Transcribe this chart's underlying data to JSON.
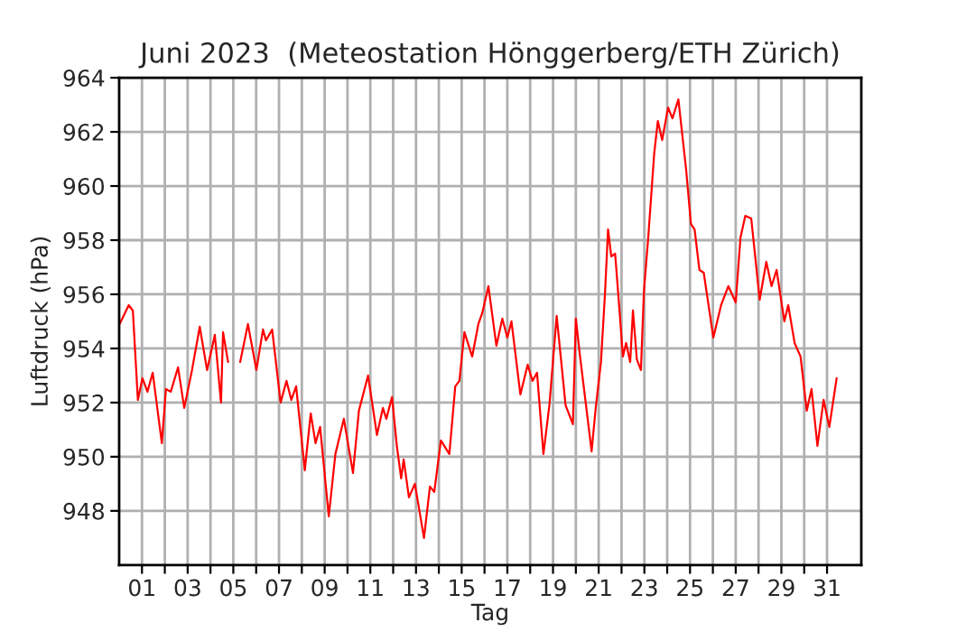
{
  "chart_data": {
    "type": "line",
    "title": "Juni 2023  (Meteostation Hönggerberg/ETH Zürich)",
    "xlabel": "Tag",
    "ylabel": "Luftdruck (hPa)",
    "x": [
      0.02,
      0.42,
      0.6,
      0.82,
      1.02,
      1.24,
      1.47,
      1.87,
      2.05,
      2.26,
      2.58,
      2.85,
      3.19,
      3.53,
      3.85,
      4.19,
      4.46,
      4.55,
      4.77,
      5.0,
      5.3,
      5.64,
      6.01,
      6.3,
      6.43,
      6.7,
      7.07,
      7.33,
      7.54,
      7.75,
      8.13,
      8.39,
      8.6,
      8.8,
      9.18,
      9.47,
      9.84,
      10.24,
      10.5,
      10.9,
      11.29,
      11.55,
      11.7,
      11.95,
      12.16,
      12.35,
      12.46,
      12.69,
      12.95,
      13.35,
      13.61,
      13.8,
      14.09,
      14.46,
      14.72,
      14.9,
      15.12,
      15.46,
      15.73,
      15.9,
      16.17,
      16.52,
      16.78,
      17.0,
      17.18,
      17.57,
      17.89,
      18.1,
      18.3,
      18.58,
      18.84,
      19.16,
      19.55,
      19.87,
      20.0,
      20.17,
      20.69,
      20.87,
      21.1,
      21.28,
      21.41,
      21.55,
      21.72,
      21.93,
      22.06,
      22.2,
      22.38,
      22.5,
      22.67,
      22.85,
      22.98,
      23.17,
      23.43,
      23.59,
      23.78,
      24.04,
      24.23,
      24.49,
      24.83,
      25.04,
      25.2,
      25.41,
      25.6,
      26.02,
      26.36,
      26.68,
      27.0,
      27.21,
      27.42,
      27.68,
      28.05,
      28.34,
      28.57,
      28.79,
      29.13,
      29.3,
      29.58,
      29.84,
      30.11,
      30.32,
      30.58,
      30.85,
      31.1,
      31.42
    ],
    "series": [
      {
        "color": "#ff0000",
        "values": [
          954.9,
          955.6,
          955.4,
          952.1,
          952.9,
          952.4,
          953.1,
          950.5,
          952.5,
          952.4,
          953.3,
          951.8,
          953.2,
          954.8,
          953.2,
          954.5,
          952.0,
          954.6,
          953.5,
          null,
          953.5,
          954.9,
          953.2,
          954.7,
          954.3,
          954.7,
          952.0,
          952.8,
          952.1,
          952.6,
          949.5,
          951.6,
          950.5,
          951.1,
          947.8,
          950.1,
          951.4,
          949.4,
          951.7,
          953.0,
          950.8,
          951.8,
          951.4,
          952.2,
          950.4,
          949.2,
          949.9,
          948.5,
          949.0,
          947.0,
          948.9,
          948.7,
          950.6,
          950.1,
          952.6,
          952.8,
          954.6,
          953.7,
          954.9,
          955.3,
          956.3,
          954.1,
          955.1,
          954.4,
          955.0,
          952.3,
          953.4,
          952.8,
          953.1,
          950.1,
          951.9,
          955.2,
          951.9,
          951.2,
          955.1,
          953.8,
          950.2,
          951.8,
          953.5,
          956.1,
          958.4,
          957.4,
          957.5,
          955.2,
          953.7,
          954.2,
          953.5,
          955.4,
          953.6,
          953.2,
          956.1,
          958.1,
          961.2,
          962.4,
          961.7,
          962.9,
          962.5,
          963.2,
          960.6,
          958.6,
          958.4,
          956.9,
          956.8,
          954.4,
          955.6,
          956.3,
          955.7,
          958.1,
          958.9,
          958.8,
          955.8,
          957.2,
          956.3,
          956.9,
          955.0,
          955.6,
          954.2,
          953.7,
          951.7,
          952.5,
          950.4,
          952.1,
          951.1,
          952.9
        ]
      }
    ],
    "xlim": [
      0,
      32.5
    ],
    "xticks": [
      {
        "value": 1,
        "label": "01"
      },
      {
        "value": 2,
        "label": null
      },
      {
        "value": 3,
        "label": "03"
      },
      {
        "value": 4,
        "label": null
      },
      {
        "value": 5,
        "label": "05"
      },
      {
        "value": 6,
        "label": null
      },
      {
        "value": 7,
        "label": "07"
      },
      {
        "value": 8,
        "label": null
      },
      {
        "value": 9,
        "label": "09"
      },
      {
        "value": 10,
        "label": null
      },
      {
        "value": 11,
        "label": "11"
      },
      {
        "value": 12,
        "label": null
      },
      {
        "value": 13,
        "label": "13"
      },
      {
        "value": 14,
        "label": null
      },
      {
        "value": 15,
        "label": "15"
      },
      {
        "value": 16,
        "label": null
      },
      {
        "value": 17,
        "label": "17"
      },
      {
        "value": 18,
        "label": null
      },
      {
        "value": 19,
        "label": "19"
      },
      {
        "value": 20,
        "label": null
      },
      {
        "value": 21,
        "label": "21"
      },
      {
        "value": 22,
        "label": null
      },
      {
        "value": 23,
        "label": "23"
      },
      {
        "value": 24,
        "label": null
      },
      {
        "value": 25,
        "label": "25"
      },
      {
        "value": 26,
        "label": null
      },
      {
        "value": 27,
        "label": "27"
      },
      {
        "value": 28,
        "label": null
      },
      {
        "value": 29,
        "label": "29"
      },
      {
        "value": 30,
        "label": null
      },
      {
        "value": 31,
        "label": "31"
      }
    ],
    "ylim": [
      946,
      964
    ],
    "yticks": [
      948,
      950,
      952,
      954,
      956,
      958,
      960,
      962,
      964
    ],
    "grid": true,
    "line_style": "solid",
    "marker": "none",
    "legend": false
  }
}
